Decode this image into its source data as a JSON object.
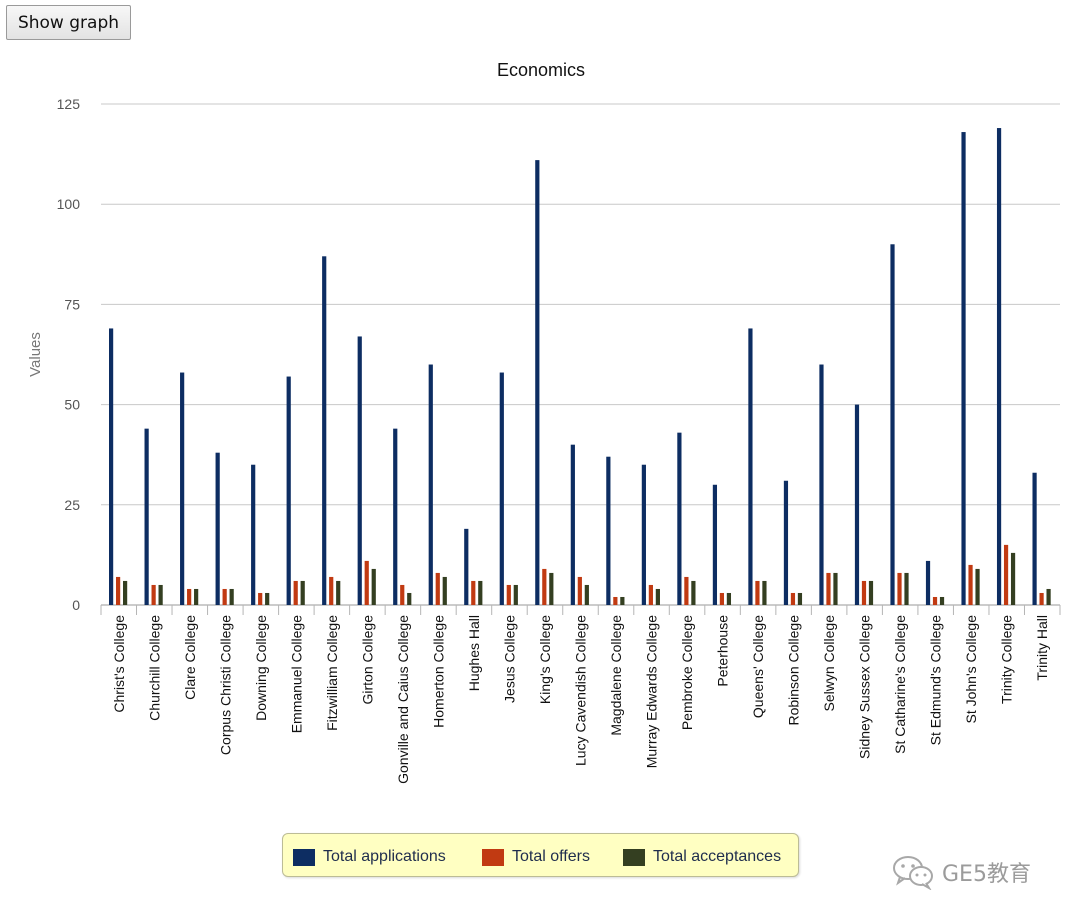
{
  "toolbar": {
    "show_graph_label": "Show graph"
  },
  "watermark": {
    "text": "GE5教育",
    "icon": "wechat-icon"
  },
  "colors": {
    "applications": "#0d2d62",
    "offers": "#c13a12",
    "acceptances": "#343f21",
    "grid": "#c8c8c8",
    "axis_text": "#555555",
    "legend_bg": "#ffffc2"
  },
  "chart_data": {
    "type": "bar",
    "title": "Economics",
    "xlabel": "",
    "ylabel": "Values",
    "ylim": [
      0,
      125
    ],
    "yticks": [
      0,
      25,
      50,
      75,
      100,
      125
    ],
    "grid": true,
    "legend_position": "bottom",
    "categories": [
      "Christ's College",
      "Churchill College",
      "Clare College",
      "Corpus Christi College",
      "Downing College",
      "Emmanuel College",
      "Fitzwilliam College",
      "Girton College",
      "Gonville and Caius College",
      "Homerton College",
      "Hughes Hall",
      "Jesus College",
      "King's College",
      "Lucy Cavendish College",
      "Magdalene College",
      "Murray Edwards College",
      "Pembroke College",
      "Peterhouse",
      "Queens' College",
      "Robinson College",
      "Selwyn College",
      "Sidney Sussex College",
      "St Catharine's College",
      "St Edmund's College",
      "St John's College",
      "Trinity College",
      "Trinity Hall"
    ],
    "series": [
      {
        "name": "Total applications",
        "color": "#0d2d62",
        "values": [
          69,
          44,
          58,
          38,
          35,
          57,
          87,
          67,
          44,
          60,
          19,
          58,
          111,
          40,
          37,
          35,
          43,
          30,
          69,
          31,
          60,
          50,
          90,
          11,
          118,
          119,
          33
        ]
      },
      {
        "name": "Total offers",
        "color": "#c13a12",
        "values": [
          7,
          5,
          4,
          4,
          3,
          6,
          7,
          11,
          5,
          8,
          6,
          5,
          9,
          7,
          2,
          5,
          7,
          3,
          6,
          3,
          8,
          6,
          8,
          2,
          10,
          15,
          3
        ]
      },
      {
        "name": "Total acceptances",
        "color": "#343f21",
        "values": [
          6,
          5,
          4,
          4,
          3,
          6,
          6,
          9,
          3,
          7,
          6,
          5,
          8,
          5,
          2,
          4,
          6,
          3,
          6,
          3,
          8,
          6,
          8,
          2,
          9,
          13,
          4
        ]
      }
    ]
  }
}
